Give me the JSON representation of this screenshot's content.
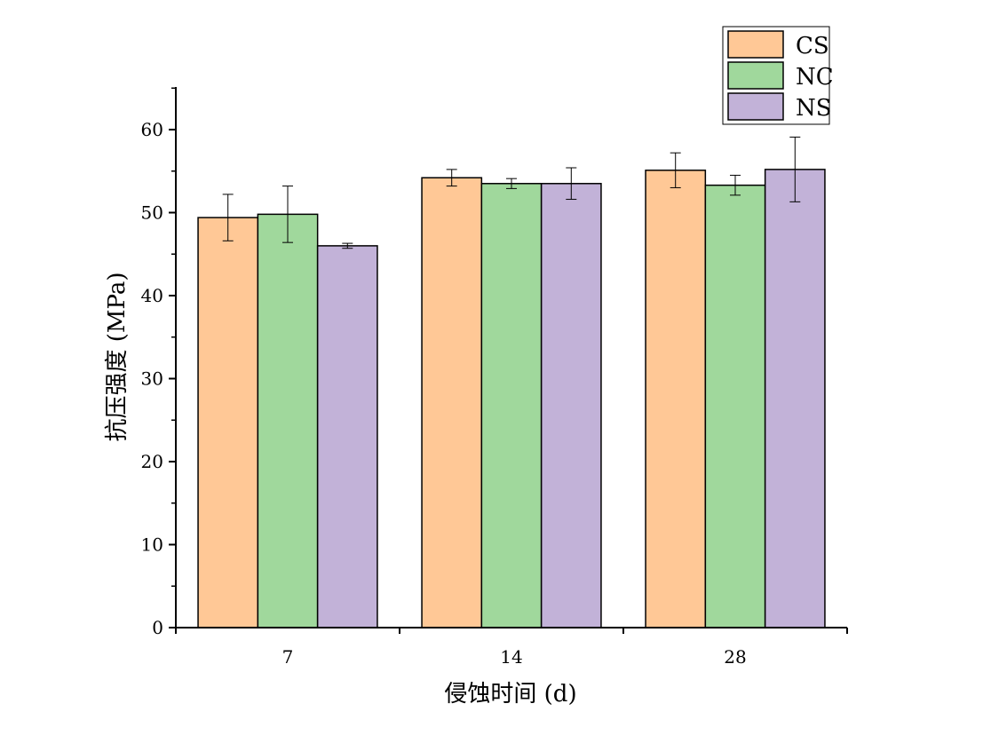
{
  "chart_data": {
    "type": "bar",
    "title": "",
    "xlabel": "侵蚀时间 (d)",
    "ylabel": "抗压强度 (MPa)",
    "categories": [
      "7",
      "14",
      "28"
    ],
    "ylim": [
      0,
      65
    ],
    "yticks": [
      0,
      10,
      20,
      30,
      40,
      50,
      60
    ],
    "grid": false,
    "legend_position": "top-right",
    "series": [
      {
        "name": "CS",
        "color": "#FFC896",
        "values": [
          49.4,
          54.2,
          55.1
        ],
        "errors": [
          2.8,
          1.0,
          2.1
        ]
      },
      {
        "name": "NC",
        "color": "#A0D89C",
        "values": [
          49.8,
          53.5,
          53.3
        ],
        "errors": [
          3.4,
          0.6,
          1.2
        ]
      },
      {
        "name": "NS",
        "color": "#C2B2D8",
        "values": [
          46.0,
          53.5,
          55.2
        ],
        "errors": [
          0.3,
          1.9,
          3.9
        ]
      }
    ]
  }
}
